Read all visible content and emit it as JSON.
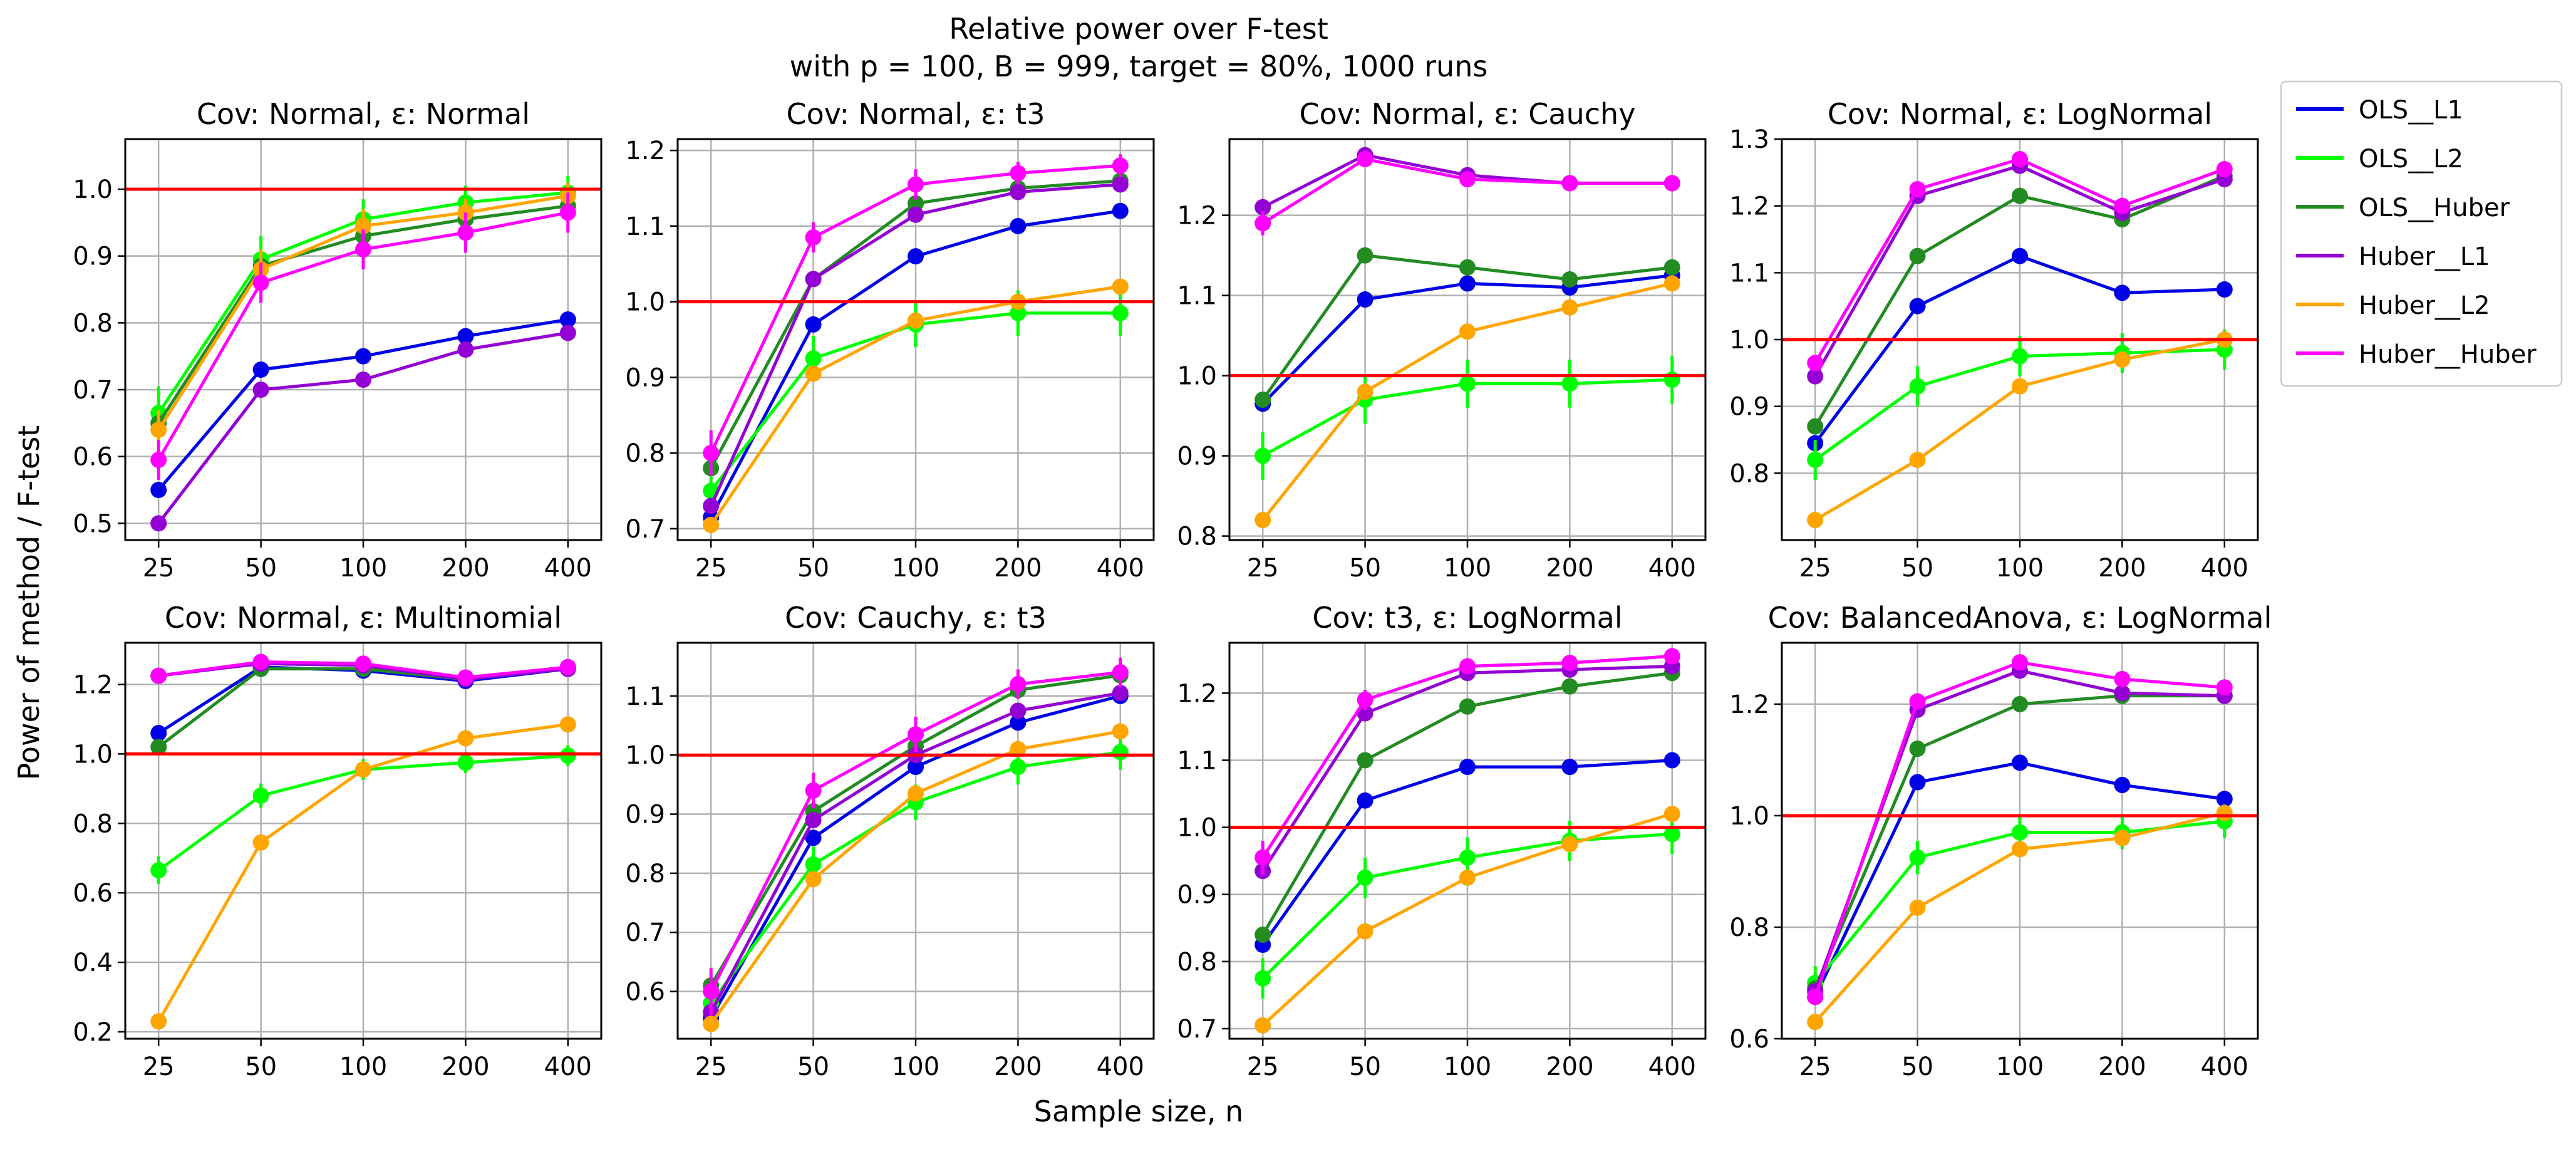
{
  "figure": {
    "suptitle_line1": "Relative power over F-test",
    "suptitle_line2": "with p = 100, B = 999, target = 80%, 1000 runs",
    "xlabel": "Sample size, n",
    "ylabel": "Power of method / F-test"
  },
  "legend": {
    "placement": "right, outside panels (top)",
    "entries": [
      {
        "label": "OLS__L1",
        "color": "#0000e6"
      },
      {
        "label": "OLS__L2",
        "color": "#00ff00"
      },
      {
        "label": "OLS__Huber",
        "color": "#228b22"
      },
      {
        "label": "Huber__L1",
        "color": "#9400d3"
      },
      {
        "label": "Huber__L2",
        "color": "#ffa500"
      },
      {
        "label": "Huber__Huber",
        "color": "#ff00ff"
      }
    ]
  },
  "colors": {
    "reference_line": "#ff0000",
    "grid": "#b0b0b0",
    "axes": "#000000"
  },
  "chart_data": [
    {
      "type": "line",
      "title": "Cov: Normal, ε: Normal",
      "x": [
        "25",
        "50",
        "100",
        "200",
        "400"
      ],
      "ylim": [
        0.475,
        1.075
      ],
      "yticks": [
        "0.5",
        "0.6",
        "0.7",
        "0.8",
        "0.9",
        "1.0"
      ],
      "ytick_values": [
        0.5,
        0.6,
        0.7,
        0.8,
        0.9,
        1.0
      ],
      "reference_line": 1.0,
      "grid": true,
      "series": [
        {
          "name": "OLS__L1",
          "values": [
            0.55,
            0.73,
            0.75,
            0.78,
            0.805
          ],
          "err": [
            0.01,
            0.01,
            0.01,
            0.01,
            0.01
          ]
        },
        {
          "name": "OLS__L2",
          "values": [
            0.665,
            0.895,
            0.955,
            0.98,
            0.995
          ],
          "err": [
            0.04,
            0.035,
            0.03,
            0.025,
            0.025
          ]
        },
        {
          "name": "OLS__Huber",
          "values": [
            0.65,
            0.885,
            0.93,
            0.955,
            0.975
          ],
          "err": [
            0.01,
            0.01,
            0.01,
            0.01,
            0.01
          ]
        },
        {
          "name": "Huber__L1",
          "values": [
            0.5,
            0.7,
            0.715,
            0.76,
            0.785
          ],
          "err": [
            0.01,
            0.01,
            0.01,
            0.01,
            0.01
          ]
        },
        {
          "name": "Huber__L2",
          "values": [
            0.64,
            0.88,
            0.945,
            0.965,
            0.99
          ],
          "err": [
            0.03,
            0.03,
            0.025,
            0.02,
            0.02
          ]
        },
        {
          "name": "Huber__Huber",
          "values": [
            0.595,
            0.86,
            0.91,
            0.935,
            0.965
          ],
          "err": [
            0.03,
            0.03,
            0.03,
            0.03,
            0.03
          ]
        }
      ]
    },
    {
      "type": "line",
      "title": "Cov: Normal, ε: t3",
      "x": [
        "25",
        "50",
        "100",
        "200",
        "400"
      ],
      "ylim": [
        0.685,
        1.215
      ],
      "yticks": [
        "0.7",
        "0.8",
        "0.9",
        "1.0",
        "1.1",
        "1.2"
      ],
      "ytick_values": [
        0.7,
        0.8,
        0.9,
        1.0,
        1.1,
        1.2
      ],
      "reference_line": 1.0,
      "grid": true,
      "series": [
        {
          "name": "OLS__L1",
          "values": [
            0.715,
            0.97,
            1.06,
            1.1,
            1.12
          ],
          "err": [
            0.01,
            0.01,
            0.01,
            0.01,
            0.01
          ]
        },
        {
          "name": "OLS__L2",
          "values": [
            0.75,
            0.925,
            0.97,
            0.985,
            0.985
          ],
          "err": [
            0.03,
            0.03,
            0.03,
            0.03,
            0.03
          ]
        },
        {
          "name": "OLS__Huber",
          "values": [
            0.78,
            1.03,
            1.13,
            1.15,
            1.16
          ],
          "err": [
            0.01,
            0.01,
            0.01,
            0.01,
            0.01
          ]
        },
        {
          "name": "Huber__L1",
          "values": [
            0.73,
            1.03,
            1.115,
            1.145,
            1.155
          ],
          "err": [
            0.01,
            0.01,
            0.01,
            0.01,
            0.01
          ]
        },
        {
          "name": "Huber__L2",
          "values": [
            0.705,
            0.905,
            0.975,
            1.0,
            1.02
          ],
          "err": [
            0.01,
            0.01,
            0.01,
            0.01,
            0.01
          ]
        },
        {
          "name": "Huber__Huber",
          "values": [
            0.8,
            1.085,
            1.155,
            1.17,
            1.18
          ],
          "err": [
            0.03,
            0.02,
            0.02,
            0.015,
            0.015
          ]
        }
      ]
    },
    {
      "type": "line",
      "title": "Cov: Normal, ε: Cauchy",
      "x": [
        "25",
        "50",
        "100",
        "200",
        "400"
      ],
      "ylim": [
        0.795,
        1.295
      ],
      "yticks": [
        "0.8",
        "0.9",
        "1.0",
        "1.1",
        "1.2"
      ],
      "ytick_values": [
        0.8,
        0.9,
        1.0,
        1.1,
        1.2
      ],
      "reference_line": 1.0,
      "grid": true,
      "series": [
        {
          "name": "OLS__L1",
          "values": [
            0.965,
            1.095,
            1.115,
            1.11,
            1.125
          ],
          "err": [
            0.01,
            0.01,
            0.01,
            0.01,
            0.01
          ]
        },
        {
          "name": "OLS__L2",
          "values": [
            0.9,
            0.97,
            0.99,
            0.99,
            0.995
          ],
          "err": [
            0.03,
            0.03,
            0.03,
            0.03,
            0.03
          ]
        },
        {
          "name": "OLS__Huber",
          "values": [
            0.97,
            1.15,
            1.135,
            1.12,
            1.135
          ],
          "err": [
            0.01,
            0.01,
            0.01,
            0.01,
            0.01
          ]
        },
        {
          "name": "Huber__L1",
          "values": [
            1.21,
            1.275,
            1.25,
            1.24,
            1.24
          ],
          "err": [
            0.01,
            0.01,
            0.01,
            0.01,
            0.01
          ]
        },
        {
          "name": "Huber__L2",
          "values": [
            0.82,
            0.98,
            1.055,
            1.085,
            1.115
          ],
          "err": [
            0.01,
            0.01,
            0.01,
            0.01,
            0.01
          ]
        },
        {
          "name": "Huber__Huber",
          "values": [
            1.19,
            1.27,
            1.245,
            1.24,
            1.24
          ],
          "err": [
            0.015,
            0.01,
            0.01,
            0.01,
            0.01
          ]
        }
      ]
    },
    {
      "type": "line",
      "title": "Cov: Normal, ε: LogNormal",
      "x": [
        "25",
        "50",
        "100",
        "200",
        "400"
      ],
      "ylim": [
        0.7,
        1.3
      ],
      "yticks": [
        "0.8",
        "0.9",
        "1.0",
        "1.1",
        "1.2",
        "1.3"
      ],
      "ytick_values": [
        0.8,
        0.9,
        1.0,
        1.1,
        1.2,
        1.3
      ],
      "reference_line": 1.0,
      "grid": true,
      "series": [
        {
          "name": "OLS__L1",
          "values": [
            0.845,
            1.05,
            1.125,
            1.07,
            1.075
          ],
          "err": [
            0.01,
            0.01,
            0.01,
            0.01,
            0.01
          ]
        },
        {
          "name": "OLS__L2",
          "values": [
            0.82,
            0.93,
            0.975,
            0.98,
            0.985
          ],
          "err": [
            0.03,
            0.03,
            0.03,
            0.03,
            0.03
          ]
        },
        {
          "name": "OLS__Huber",
          "values": [
            0.87,
            1.125,
            1.215,
            1.18,
            1.245
          ],
          "err": [
            0.01,
            0.01,
            0.01,
            0.01,
            0.01
          ]
        },
        {
          "name": "Huber__L1",
          "values": [
            0.945,
            1.215,
            1.26,
            1.19,
            1.24
          ],
          "err": [
            0.01,
            0.01,
            0.01,
            0.01,
            0.01
          ]
        },
        {
          "name": "Huber__L2",
          "values": [
            0.73,
            0.82,
            0.93,
            0.97,
            1.0
          ],
          "err": [
            0.01,
            0.01,
            0.01,
            0.01,
            0.01
          ]
        },
        {
          "name": "Huber__Huber",
          "values": [
            0.965,
            1.225,
            1.27,
            1.2,
            1.255
          ],
          "err": [
            0.01,
            0.01,
            0.01,
            0.01,
            0.01
          ]
        }
      ]
    },
    {
      "type": "line",
      "title": "Cov: Normal, ε: Multinomial",
      "x": [
        "25",
        "50",
        "100",
        "200",
        "400"
      ],
      "ylim": [
        0.18,
        1.32
      ],
      "yticks": [
        "0.2",
        "0.4",
        "0.6",
        "0.8",
        "1.0",
        "1.2"
      ],
      "ytick_values": [
        0.2,
        0.4,
        0.6,
        0.8,
        1.0,
        1.2
      ],
      "reference_line": 1.0,
      "grid": true,
      "series": [
        {
          "name": "OLS__L1",
          "values": [
            1.06,
            1.25,
            1.24,
            1.21,
            1.245
          ],
          "err": [
            0.01,
            0.01,
            0.01,
            0.01,
            0.01
          ]
        },
        {
          "name": "OLS__L2",
          "values": [
            0.665,
            0.88,
            0.955,
            0.975,
            0.995
          ],
          "err": [
            0.04,
            0.035,
            0.03,
            0.03,
            0.03
          ]
        },
        {
          "name": "OLS__Huber",
          "values": [
            1.02,
            1.245,
            1.245,
            1.215,
            1.25
          ],
          "err": [
            0.01,
            0.01,
            0.01,
            0.01,
            0.01
          ]
        },
        {
          "name": "Huber__L1",
          "values": [
            1.225,
            1.26,
            1.255,
            1.215,
            1.245
          ],
          "err": [
            0.01,
            0.01,
            0.01,
            0.01,
            0.01
          ]
        },
        {
          "name": "Huber__L2",
          "values": [
            0.23,
            0.745,
            0.955,
            1.045,
            1.085
          ],
          "err": [
            0.01,
            0.01,
            0.01,
            0.01,
            0.01
          ]
        },
        {
          "name": "Huber__Huber",
          "values": [
            1.225,
            1.265,
            1.26,
            1.22,
            1.25
          ],
          "err": [
            0.01,
            0.01,
            0.01,
            0.01,
            0.01
          ]
        }
      ]
    },
    {
      "type": "line",
      "title": "Cov: Cauchy, ε: t3",
      "x": [
        "25",
        "50",
        "100",
        "200",
        "400"
      ],
      "ylim": [
        0.52,
        1.19
      ],
      "yticks": [
        "0.6",
        "0.7",
        "0.8",
        "0.9",
        "1.0",
        "1.1"
      ],
      "ytick_values": [
        0.6,
        0.7,
        0.8,
        0.9,
        1.0,
        1.1
      ],
      "reference_line": 1.0,
      "grid": true,
      "series": [
        {
          "name": "OLS__L1",
          "values": [
            0.555,
            0.86,
            0.98,
            1.055,
            1.1
          ],
          "err": [
            0.01,
            0.01,
            0.01,
            0.01,
            0.01
          ]
        },
        {
          "name": "OLS__L2",
          "values": [
            0.58,
            0.815,
            0.92,
            0.98,
            1.005
          ],
          "err": [
            0.03,
            0.03,
            0.03,
            0.03,
            0.03
          ]
        },
        {
          "name": "OLS__Huber",
          "values": [
            0.61,
            0.905,
            1.015,
            1.11,
            1.135
          ],
          "err": [
            0.01,
            0.01,
            0.01,
            0.01,
            0.01
          ]
        },
        {
          "name": "Huber__L1",
          "values": [
            0.565,
            0.89,
            1.0,
            1.075,
            1.105
          ],
          "err": [
            0.01,
            0.01,
            0.01,
            0.01,
            0.01
          ]
        },
        {
          "name": "Huber__L2",
          "values": [
            0.545,
            0.79,
            0.935,
            1.01,
            1.04
          ],
          "err": [
            0.01,
            0.01,
            0.01,
            0.01,
            0.01
          ]
        },
        {
          "name": "Huber__Huber",
          "values": [
            0.6,
            0.94,
            1.035,
            1.12,
            1.14
          ],
          "err": [
            0.04,
            0.03,
            0.03,
            0.025,
            0.025
          ]
        }
      ]
    },
    {
      "type": "line",
      "title": "Cov: t3, ε: LogNormal",
      "x": [
        "25",
        "50",
        "100",
        "200",
        "400"
      ],
      "ylim": [
        0.685,
        1.275
      ],
      "yticks": [
        "0.7",
        "0.8",
        "0.9",
        "1.0",
        "1.1",
        "1.2"
      ],
      "ytick_values": [
        0.7,
        0.8,
        0.9,
        1.0,
        1.1,
        1.2
      ],
      "reference_line": 1.0,
      "grid": true,
      "series": [
        {
          "name": "OLS__L1",
          "values": [
            0.825,
            1.04,
            1.09,
            1.09,
            1.1
          ],
          "err": [
            0.01,
            0.01,
            0.01,
            0.01,
            0.01
          ]
        },
        {
          "name": "OLS__L2",
          "values": [
            0.775,
            0.925,
            0.955,
            0.98,
            0.99
          ],
          "err": [
            0.03,
            0.03,
            0.03,
            0.03,
            0.03
          ]
        },
        {
          "name": "OLS__Huber",
          "values": [
            0.84,
            1.1,
            1.18,
            1.21,
            1.23
          ],
          "err": [
            0.01,
            0.01,
            0.01,
            0.01,
            0.01
          ]
        },
        {
          "name": "Huber__L1",
          "values": [
            0.935,
            1.17,
            1.23,
            1.235,
            1.24
          ],
          "err": [
            0.01,
            0.01,
            0.01,
            0.01,
            0.01
          ]
        },
        {
          "name": "Huber__L2",
          "values": [
            0.705,
            0.845,
            0.925,
            0.975,
            1.02
          ],
          "err": [
            0.01,
            0.01,
            0.01,
            0.01,
            0.01
          ]
        },
        {
          "name": "Huber__Huber",
          "values": [
            0.955,
            1.19,
            1.24,
            1.245,
            1.255
          ],
          "err": [
            0.025,
            0.015,
            0.01,
            0.01,
            0.01
          ]
        }
      ]
    },
    {
      "type": "line",
      "title": "Cov: BalancedAnova, ε: LogNormal",
      "x": [
        "25",
        "50",
        "100",
        "200",
        "400"
      ],
      "ylim": [
        0.6,
        1.31
      ],
      "yticks": [
        "0.6",
        "0.8",
        "1.0",
        "1.2"
      ],
      "ytick_values": [
        0.6,
        0.8,
        1.0,
        1.2
      ],
      "reference_line": 1.0,
      "grid": true,
      "series": [
        {
          "name": "OLS__L1",
          "values": [
            0.675,
            1.06,
            1.095,
            1.055,
            1.03
          ],
          "err": [
            0.01,
            0.01,
            0.01,
            0.01,
            0.01
          ]
        },
        {
          "name": "OLS__L2",
          "values": [
            0.7,
            0.925,
            0.97,
            0.97,
            0.99
          ],
          "err": [
            0.03,
            0.03,
            0.03,
            0.03,
            0.03
          ]
        },
        {
          "name": "OLS__Huber",
          "values": [
            0.69,
            1.12,
            1.2,
            1.215,
            1.215
          ],
          "err": [
            0.01,
            0.01,
            0.01,
            0.01,
            0.01
          ]
        },
        {
          "name": "Huber__L1",
          "values": [
            0.685,
            1.19,
            1.26,
            1.22,
            1.215
          ],
          "err": [
            0.01,
            0.01,
            0.01,
            0.01,
            0.01
          ]
        },
        {
          "name": "Huber__L2",
          "values": [
            0.63,
            0.835,
            0.94,
            0.96,
            1.005
          ],
          "err": [
            0.01,
            0.01,
            0.01,
            0.01,
            0.01
          ]
        },
        {
          "name": "Huber__Huber",
          "values": [
            0.675,
            1.205,
            1.275,
            1.245,
            1.23
          ],
          "err": [
            0.01,
            0.01,
            0.01,
            0.01,
            0.01
          ]
        }
      ]
    }
  ]
}
